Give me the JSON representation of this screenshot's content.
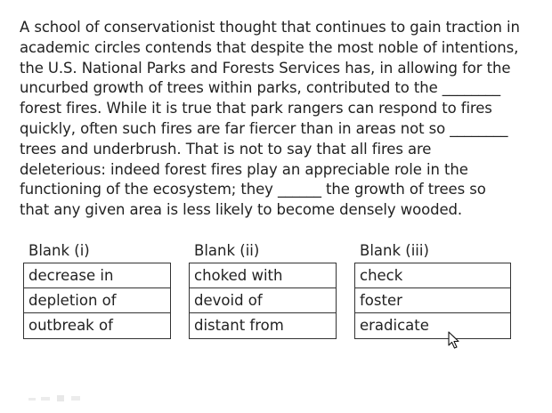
{
  "passage": {
    "lines": [
      "A school of conservationist thought that continues to gain traction in",
      "academic circles contends that despite the most noble of intentions,",
      "the U.S. National Parks and Forests Services has, in allowing for the",
      "uncurbed growth of trees within parks, contributed to the ________",
      "forest fires. While it is true that park rangers can respond to fires",
      "quickly, often such fires are far fiercer than in areas not so ________",
      "trees and underbrush.  That is not to say that all fires are",
      "deleterious: indeed forest fires play an appreciable role in the",
      "functioning of the ecosystem; they ______ the growth of trees so",
      "that any given area is less likely to become densely wooded."
    ]
  },
  "blanks": [
    {
      "heading": "Blank (i)",
      "options": [
        "decrease in",
        "depletion of",
        "outbreak of"
      ]
    },
    {
      "heading": "Blank (ii)",
      "options": [
        "choked with",
        "devoid of",
        "distant from"
      ]
    },
    {
      "heading": "Blank (iii)",
      "options": [
        "check",
        "foster",
        "eradicate"
      ]
    }
  ],
  "icons": {
    "cursor": "mouse-pointer-icon"
  },
  "colors": {
    "text": "#222222",
    "border": "#333333",
    "background": "#ffffff"
  }
}
